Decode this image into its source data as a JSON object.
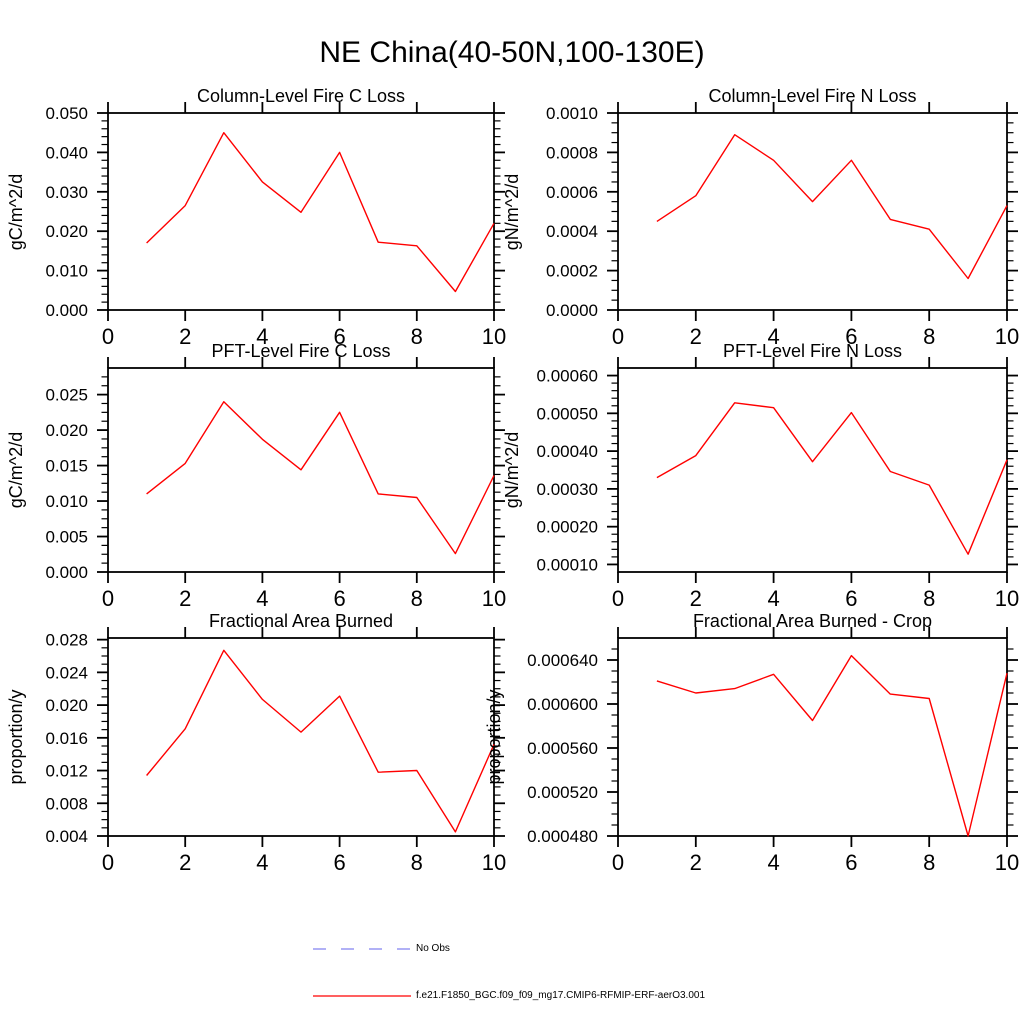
{
  "page_title": "NE China(40-50N,100-130E)",
  "legend": {
    "items": [
      {
        "label": "No Obs",
        "color": "#8282f0",
        "style": "dashed"
      },
      {
        "label": "f.e21.F1850_BGC.f09_f09_mg17.CMIP6-RFMIP-ERF-aerO3.001",
        "color": "#ff0000",
        "style": "solid"
      }
    ]
  },
  "chart_data": [
    {
      "type": "line",
      "title": "Column-Level Fire C Loss",
      "ylabel": "gC/m^2/d",
      "color": "#ff0000",
      "x": [
        1,
        2,
        3,
        4,
        5,
        6,
        7,
        8,
        9,
        10
      ],
      "values": [
        0.017,
        0.0265,
        0.045,
        0.0325,
        0.0248,
        0.04,
        0.0172,
        0.0163,
        0.0047,
        0.022
      ],
      "xlim": [
        0,
        10
      ],
      "ylim": [
        0,
        0.05
      ],
      "xticks": [
        0,
        2,
        4,
        6,
        8,
        10
      ],
      "xtick_labels": [
        "0",
        "2",
        "4",
        "6",
        "8",
        "10"
      ],
      "yticks": [
        0.0,
        0.01,
        0.02,
        0.03,
        0.04,
        0.05
      ],
      "ytick_labels": [
        "0.000",
        "0.010",
        "0.020",
        "0.030",
        "0.040",
        "0.050"
      ],
      "minor_per_major": 4,
      "grid": false
    },
    {
      "type": "line",
      "title": "Column-Level Fire N Loss",
      "ylabel": "gN/m^2/d",
      "color": "#ff0000",
      "x": [
        1,
        2,
        3,
        4,
        5,
        6,
        7,
        8,
        9,
        10
      ],
      "values": [
        0.00045,
        0.00058,
        0.00089,
        0.00076,
        0.00055,
        0.00076,
        0.00046,
        0.00041,
        0.00016,
        0.00053
      ],
      "xlim": [
        0,
        10
      ],
      "ylim": [
        0,
        0.001
      ],
      "xticks": [
        0,
        2,
        4,
        6,
        8,
        10
      ],
      "xtick_labels": [
        "0",
        "2",
        "4",
        "6",
        "8",
        "10"
      ],
      "yticks": [
        0.0,
        0.0002,
        0.0004,
        0.0006,
        0.0008,
        0.001
      ],
      "ytick_labels": [
        "0.0000",
        "0.0002",
        "0.0004",
        "0.0006",
        "0.0008",
        "0.0010"
      ],
      "minor_per_major": 3,
      "grid": false
    },
    {
      "type": "line",
      "title": "PFT-Level Fire C Loss",
      "ylabel": "gC/m^2/d",
      "color": "#ff0000",
      "x": [
        1,
        2,
        3,
        4,
        5,
        6,
        7,
        8,
        9,
        10
      ],
      "values": [
        0.011,
        0.0153,
        0.024,
        0.0187,
        0.0144,
        0.0225,
        0.011,
        0.0105,
        0.0026,
        0.0136
      ],
      "xlim": [
        0,
        10
      ],
      "ylim": [
        0,
        0.02875
      ],
      "xticks": [
        0,
        2,
        4,
        6,
        8,
        10
      ],
      "xtick_labels": [
        "0",
        "2",
        "4",
        "6",
        "8",
        "10"
      ],
      "yticks": [
        0.0,
        0.005,
        0.01,
        0.015,
        0.02,
        0.025
      ],
      "ytick_labels": [
        "0.000",
        "0.005",
        "0.010",
        "0.015",
        "0.020",
        "0.025"
      ],
      "minor_per_major": 3,
      "grid": false
    },
    {
      "type": "line",
      "title": "PFT-Level Fire N Loss",
      "ylabel": "gN/m^2/d",
      "color": "#ff0000",
      "x": [
        1,
        2,
        3,
        4,
        5,
        6,
        7,
        8,
        9,
        10
      ],
      "values": [
        0.00033,
        0.000388,
        0.000528,
        0.000515,
        0.000372,
        0.000502,
        0.000346,
        0.00031,
        0.000127,
        0.000377
      ],
      "xlim": [
        0,
        10
      ],
      "ylim": [
        8e-05,
        0.00062
      ],
      "xticks": [
        0,
        2,
        4,
        6,
        8,
        10
      ],
      "xtick_labels": [
        "0",
        "2",
        "4",
        "6",
        "8",
        "10"
      ],
      "yticks": [
        0.0001,
        0.0002,
        0.0003,
        0.0004,
        0.0005,
        0.0006
      ],
      "ytick_labels": [
        "0.00010",
        "0.00020",
        "0.00030",
        "0.00040",
        "0.00050",
        "0.00060"
      ],
      "minor_per_major": 4,
      "grid": false
    },
    {
      "type": "line",
      "title": "Fractional Area Burned",
      "ylabel": "proportion/y",
      "color": "#ff0000",
      "x": [
        1,
        2,
        3,
        4,
        5,
        6,
        7,
        8,
        9,
        10
      ],
      "values": [
        0.0114,
        0.0171,
        0.0267,
        0.0207,
        0.0167,
        0.0211,
        0.0118,
        0.012,
        0.0045,
        0.0152
      ],
      "xlim": [
        0,
        10
      ],
      "ylim": [
        0.004,
        0.0282
      ],
      "xticks": [
        0,
        2,
        4,
        6,
        8,
        10
      ],
      "xtick_labels": [
        "0",
        "2",
        "4",
        "6",
        "8",
        "10"
      ],
      "yticks": [
        0.004,
        0.008,
        0.012,
        0.016,
        0.02,
        0.024,
        0.028
      ],
      "ytick_labels": [
        "0.004",
        "0.008",
        "0.012",
        "0.016",
        "0.020",
        "0.024",
        "0.028"
      ],
      "minor_per_major": 3,
      "grid": false
    },
    {
      "type": "line",
      "title": "Fractional Area Burned - Crop",
      "ylabel": "proportion/y",
      "color": "#ff0000",
      "x": [
        1,
        2,
        3,
        4,
        5,
        6,
        7,
        8,
        9,
        10
      ],
      "values": [
        0.000621,
        0.00061,
        0.000614,
        0.000627,
        0.000585,
        0.000644,
        0.000609,
        0.000605,
        0.00048,
        0.000628
      ],
      "xlim": [
        0,
        10
      ],
      "ylim": [
        0.00048,
        0.00066
      ],
      "xticks": [
        0,
        2,
        4,
        6,
        8,
        10
      ],
      "xtick_labels": [
        "0",
        "2",
        "4",
        "6",
        "8",
        "10"
      ],
      "yticks": [
        0.00048,
        0.00052,
        0.00056,
        0.0006,
        0.00064
      ],
      "ytick_labels": [
        "0.000480",
        "0.000520",
        "0.000560",
        "0.000600",
        "0.000640"
      ],
      "minor_per_major": 3,
      "grid": false
    }
  ]
}
